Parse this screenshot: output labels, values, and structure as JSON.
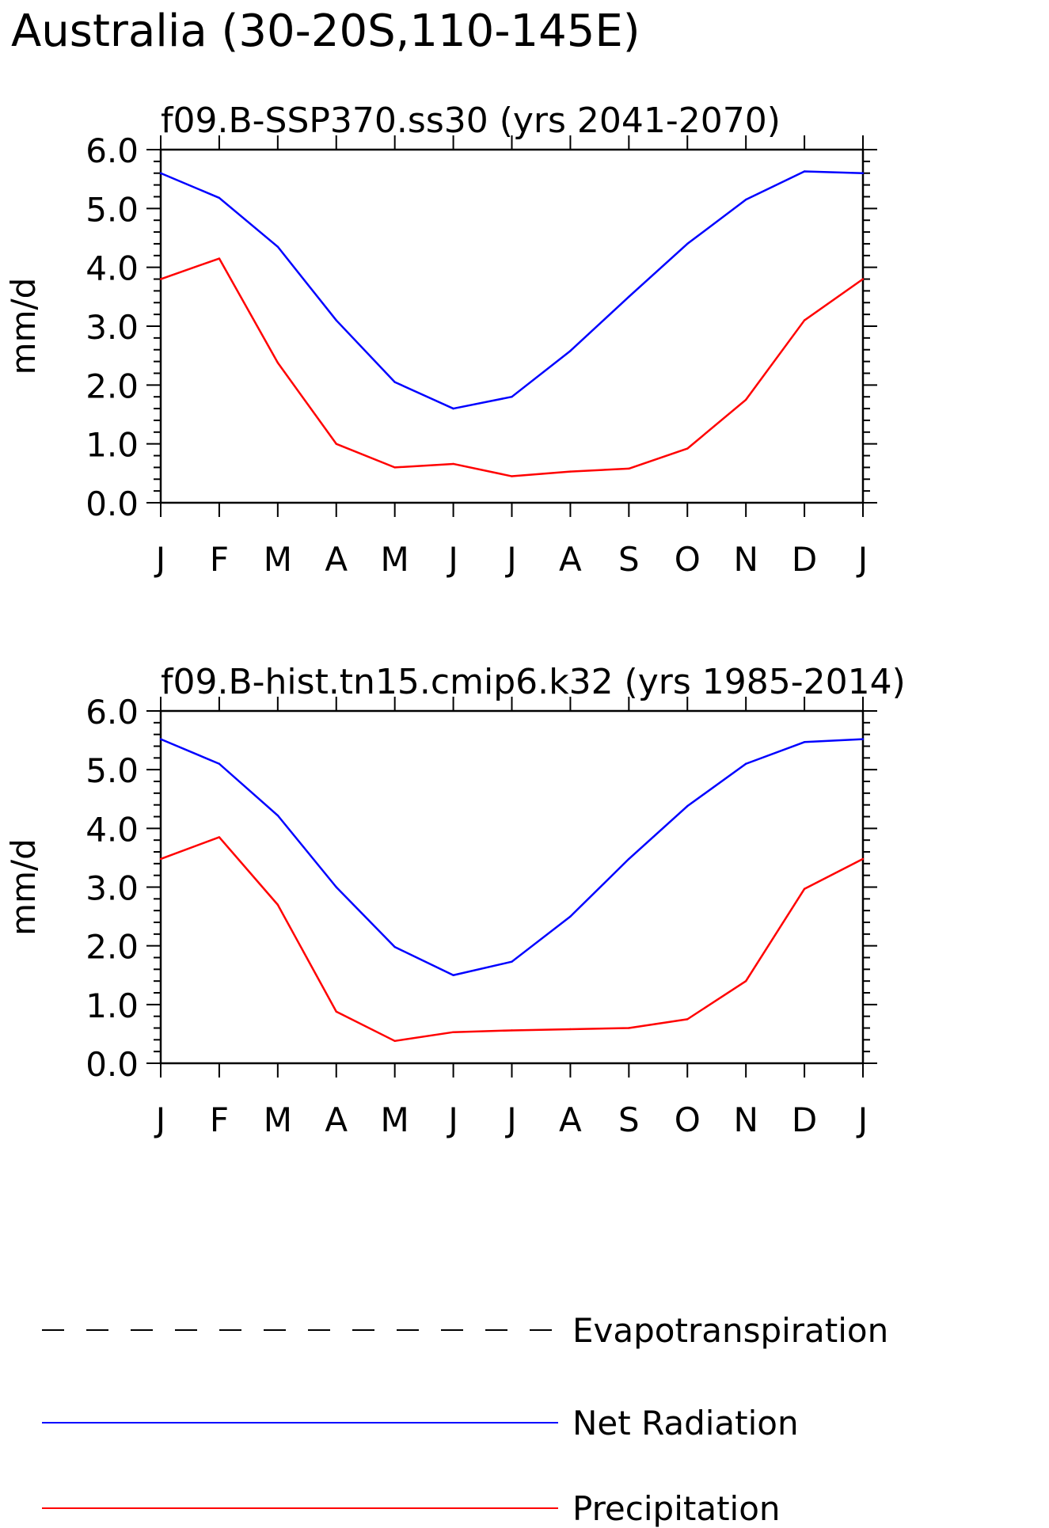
{
  "figure": {
    "title": "Australia (30-20S,110-145E)"
  },
  "legend": {
    "placement": "bottom",
    "entries": [
      {
        "label": "Evapotranspiration",
        "color": "#000000",
        "dash": "dashed"
      },
      {
        "label": "Net Radiation",
        "color": "#0000ff",
        "dash": "solid"
      },
      {
        "label": "Precipitation",
        "color": "#ff0000",
        "dash": "solid"
      }
    ]
  },
  "chart_data": [
    {
      "type": "line",
      "title": "f09.B-SSP370.ss30 (yrs 2041-2070)",
      "ylabel": "mm/d",
      "xlabel": "",
      "categories": [
        "J",
        "F",
        "M",
        "A",
        "M",
        "J",
        "J",
        "A",
        "S",
        "O",
        "N",
        "D",
        "J"
      ],
      "ylim": [
        0,
        6
      ],
      "yticks": [
        "0.0",
        "1.0",
        "2.0",
        "3.0",
        "4.0",
        "5.0",
        "6.0"
      ],
      "grid": false,
      "series": [
        {
          "name": "Net Radiation",
          "color": "#0000ff",
          "values": [
            5.6,
            5.18,
            4.35,
            3.1,
            2.05,
            1.6,
            1.8,
            2.58,
            3.5,
            4.4,
            5.15,
            5.63,
            5.6
          ]
        },
        {
          "name": "Precipitation",
          "color": "#ff0000",
          "values": [
            3.8,
            4.15,
            2.38,
            1.0,
            0.6,
            0.66,
            0.45,
            0.53,
            0.58,
            0.92,
            1.75,
            3.1,
            3.8
          ]
        }
      ]
    },
    {
      "type": "line",
      "title": "f09.B-hist.tn15.cmip6.k32 (yrs 1985-2014)",
      "ylabel": "mm/d",
      "xlabel": "",
      "categories": [
        "J",
        "F",
        "M",
        "A",
        "M",
        "J",
        "J",
        "A",
        "S",
        "O",
        "N",
        "D",
        "J"
      ],
      "ylim": [
        0,
        6
      ],
      "yticks": [
        "0.0",
        "1.0",
        "2.0",
        "3.0",
        "4.0",
        "5.0",
        "6.0"
      ],
      "grid": false,
      "series": [
        {
          "name": "Net Radiation",
          "color": "#0000ff",
          "values": [
            5.52,
            5.1,
            4.22,
            3.0,
            1.98,
            1.5,
            1.73,
            2.5,
            3.48,
            4.38,
            5.1,
            5.47,
            5.52
          ]
        },
        {
          "name": "Precipitation",
          "color": "#ff0000",
          "values": [
            3.48,
            3.85,
            2.7,
            0.88,
            0.38,
            0.53,
            0.56,
            0.58,
            0.6,
            0.75,
            1.4,
            2.97,
            3.48
          ]
        }
      ]
    }
  ]
}
